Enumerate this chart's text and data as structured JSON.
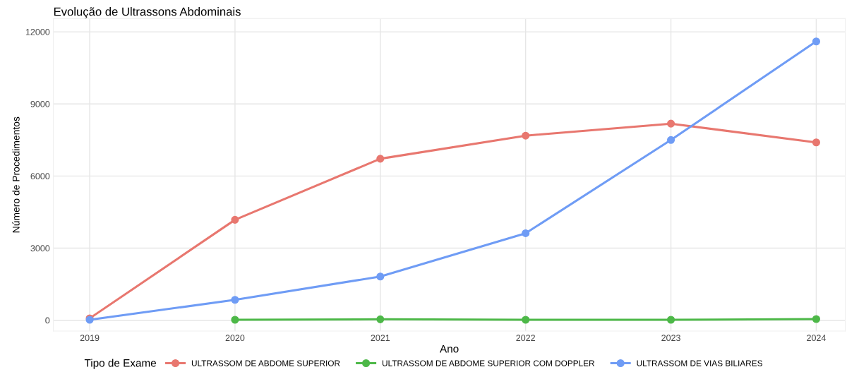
{
  "chart_data": {
    "type": "line",
    "title": "Evolução de Ultrassons Abdominais",
    "xlabel": "Ano",
    "ylabel": "Número de Procedimentos",
    "legend_title": "Tipo de Exame",
    "x": [
      2019,
      2020,
      2021,
      2022,
      2023,
      2024
    ],
    "series": [
      {
        "name": "ULTRASSOM DE ABDOME SUPERIOR",
        "color": "#e8776f",
        "values": [
          80,
          4180,
          6720,
          7680,
          8180,
          7400
        ]
      },
      {
        "name": "ULTRASSOM DE ABDOME SUPERIOR COM DOPPLER",
        "color": "#4db848",
        "values": [
          null,
          20,
          40,
          20,
          20,
          50
        ]
      },
      {
        "name": "ULTRASSOM DE VIAS BILIARES",
        "color": "#6f9cf5",
        "values": [
          20,
          850,
          1820,
          3620,
          7500,
          11600
        ]
      }
    ],
    "xlim": [
      2018.75,
      2024.2
    ],
    "xticks": [
      2019,
      2020,
      2021,
      2022,
      2023,
      2024
    ],
    "ylim": [
      -450,
      12550
    ],
    "yticks": [
      0,
      3000,
      6000,
      9000,
      12000
    ],
    "grid": true,
    "legend": "bottom",
    "marker": "circle",
    "line_style": "solid"
  }
}
